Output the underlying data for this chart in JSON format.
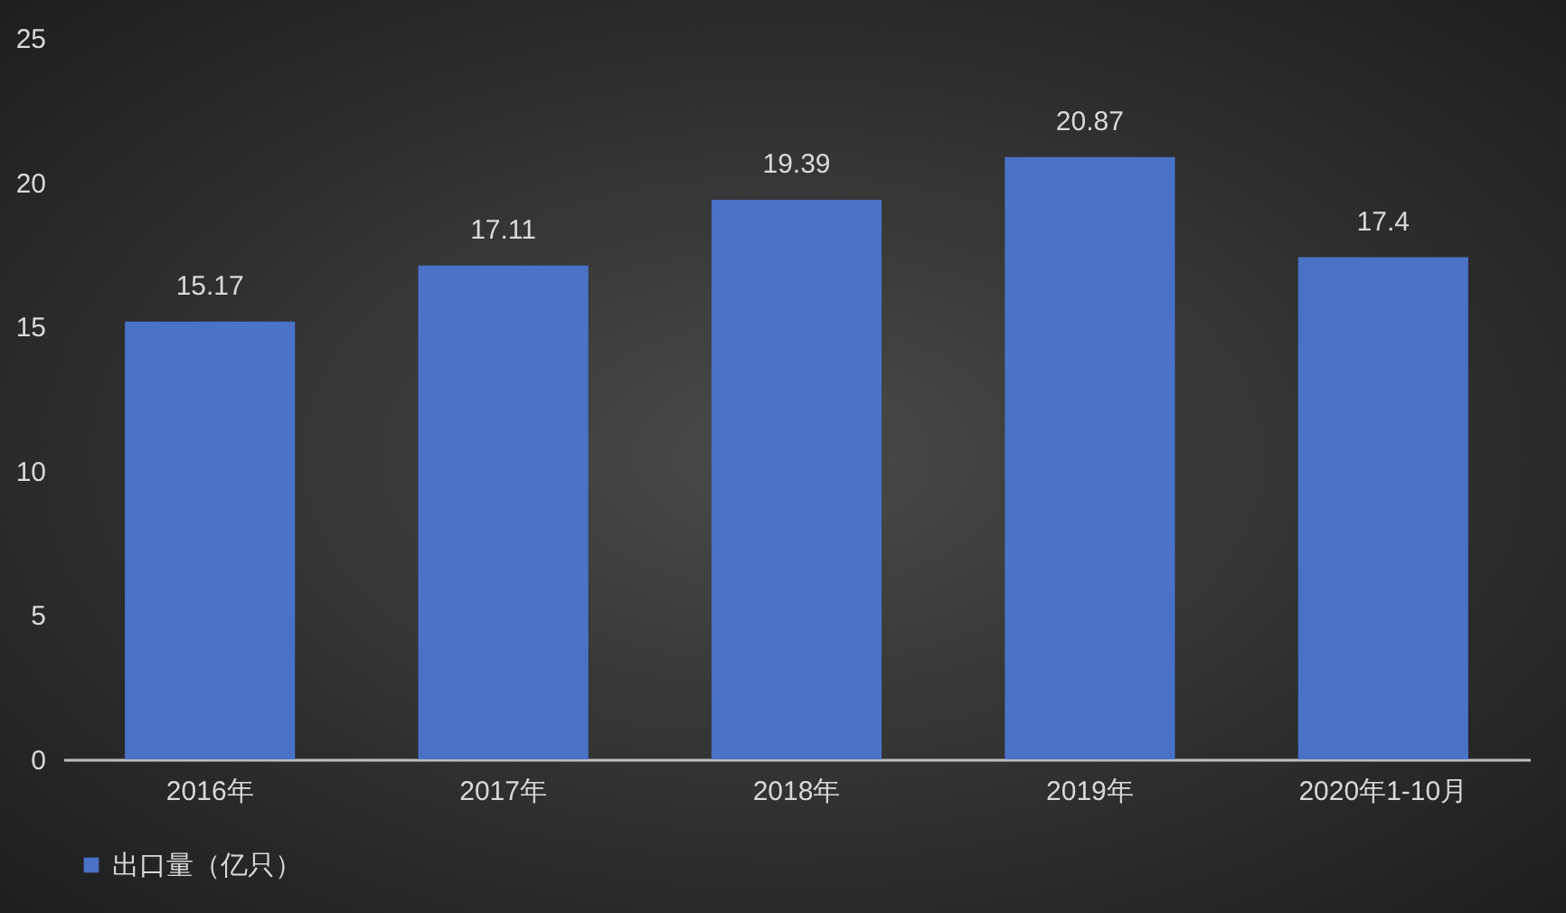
{
  "chart_data": {
    "type": "bar",
    "categories": [
      "2016年",
      "2017年",
      "2018年",
      "2019年",
      "2020年1-10月"
    ],
    "series": [
      {
        "name": "出口量（亿只）",
        "color": "#4a72c6",
        "values": [
          15.17,
          17.11,
          19.39,
          20.87,
          17.4
        ]
      }
    ],
    "ylim": [
      0,
      25
    ],
    "yticks": [
      0,
      5,
      10,
      15,
      20,
      25
    ],
    "grid": false,
    "legend": "bottom",
    "data_labels": true
  }
}
